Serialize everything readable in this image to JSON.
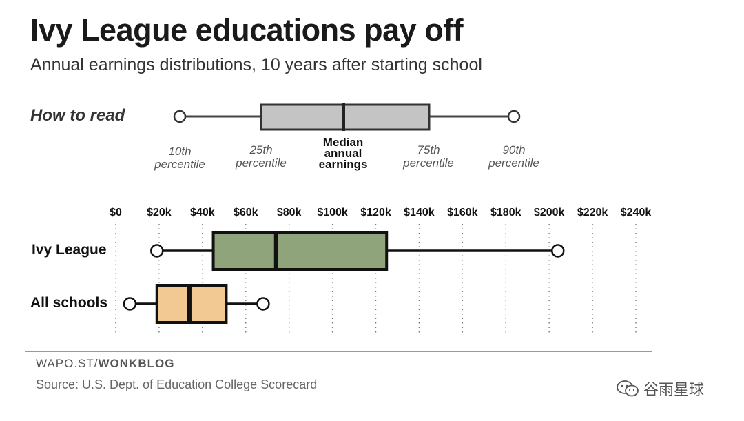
{
  "title": "Ivy League educations pay off",
  "subtitle": "Annual earnings distributions, 10 years after starting school",
  "legend": {
    "label": "How to read",
    "p10": [
      "10th",
      "percentile"
    ],
    "p25": [
      "25th",
      "percentile"
    ],
    "median": [
      "Median",
      "annual",
      "earnings"
    ],
    "p75": [
      "75th",
      "percentile"
    ],
    "p90": [
      "90th",
      "percentile"
    ]
  },
  "chart_data": {
    "type": "boxplot",
    "xlim": [
      0,
      240000
    ],
    "grid": true,
    "tick_values": [
      0,
      20000,
      40000,
      60000,
      80000,
      100000,
      120000,
      140000,
      160000,
      180000,
      200000,
      220000,
      240000
    ],
    "tick_labels": [
      "$0",
      "$20k",
      "$40k",
      "$60k",
      "$80k",
      "$100k",
      "$120k",
      "$140k",
      "$160k",
      "$180k",
      "$200k",
      "$220k",
      "$240k"
    ],
    "series": [
      {
        "name": "Ivy League",
        "p10": 19000,
        "p25": 45000,
        "median": 74000,
        "p75": 125000,
        "p90": 204000,
        "color": "#8fa47a"
      },
      {
        "name": "All schools",
        "p10": 6500,
        "p25": 19000,
        "median": 34000,
        "p75": 51000,
        "p90": 68000,
        "color": "#f2c893"
      }
    ]
  },
  "footer": {
    "credit_prefix": "WAPO.ST/",
    "credit_bold": "WONKBLOG",
    "source": "Source: U.S. Dept. of Education College Scorecard"
  },
  "watermark": {
    "text": "谷雨星球"
  }
}
